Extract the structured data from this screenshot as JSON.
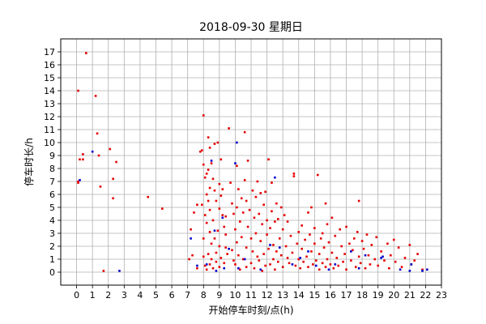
{
  "chart_data": {
    "type": "scatter",
    "title": "2018-09-30 星期日",
    "xlabel": "开始停车时刻/点(h)",
    "ylabel": "停车时长/h",
    "xlim": [
      -1,
      23
    ],
    "ylim": [
      -1,
      18
    ],
    "xticks": [
      0,
      1,
      2,
      3,
      4,
      5,
      6,
      7,
      8,
      9,
      10,
      11,
      12,
      13,
      14,
      15,
      16,
      17,
      18,
      19,
      20,
      21,
      22,
      23
    ],
    "yticks": [
      0,
      1,
      2,
      3,
      4,
      5,
      6,
      7,
      8,
      9,
      10,
      11,
      12,
      13,
      14,
      15,
      16,
      17
    ],
    "grid": true,
    "legend": "none",
    "colors": {
      "red": "#e60000",
      "blue": "#0000cc",
      "grid": "#b0b0b0"
    },
    "series": [
      {
        "color": "#e60000",
        "points": [
          [
            0.1,
            14.0
          ],
          [
            0.1,
            7.0
          ],
          [
            0.1,
            6.9
          ],
          [
            0.2,
            8.7
          ],
          [
            0.4,
            8.7
          ],
          [
            0.4,
            9.1
          ],
          [
            0.6,
            16.9
          ],
          [
            1.2,
            13.6
          ],
          [
            1.3,
            10.7
          ],
          [
            1.4,
            9.0
          ],
          [
            1.5,
            6.6
          ],
          [
            1.7,
            0.1
          ],
          [
            2.1,
            9.5
          ],
          [
            2.3,
            7.2
          ],
          [
            2.3,
            5.7
          ],
          [
            2.5,
            8.5
          ],
          [
            4.5,
            5.8
          ],
          [
            5.4,
            4.9
          ],
          [
            7.1,
            1.0
          ],
          [
            7.2,
            3.3
          ],
          [
            7.3,
            1.3
          ],
          [
            7.4,
            4.6
          ],
          [
            7.6,
            5.2
          ],
          [
            7.6,
            0.3
          ],
          [
            7.8,
            9.3
          ],
          [
            7.9,
            9.4
          ],
          [
            7.9,
            5.2
          ],
          [
            8.0,
            12.1
          ],
          [
            8.0,
            8.3
          ],
          [
            8.0,
            2.6
          ],
          [
            8.0,
            1.2
          ],
          [
            8.1,
            7.3
          ],
          [
            8.1,
            4.4
          ],
          [
            8.1,
            0.5
          ],
          [
            8.2,
            7.6
          ],
          [
            8.2,
            6.0
          ],
          [
            8.2,
            3.8
          ],
          [
            8.2,
            0.2
          ],
          [
            8.3,
            10.4
          ],
          [
            8.3,
            7.9
          ],
          [
            8.3,
            5.5
          ],
          [
            8.3,
            1.4
          ],
          [
            8.4,
            9.6
          ],
          [
            8.4,
            6.5
          ],
          [
            8.4,
            4.8
          ],
          [
            8.4,
            3.1
          ],
          [
            8.4,
            0.6
          ],
          [
            8.5,
            8.4
          ],
          [
            8.5,
            2.2
          ],
          [
            8.5,
            1.0
          ],
          [
            8.6,
            7.2
          ],
          [
            8.6,
            4.0
          ],
          [
            8.6,
            0.3
          ],
          [
            8.7,
            9.9
          ],
          [
            8.7,
            6.3
          ],
          [
            8.7,
            2.6
          ],
          [
            8.8,
            5.5
          ],
          [
            8.8,
            1.5
          ],
          [
            8.8,
            0.8
          ],
          [
            8.9,
            10.0
          ],
          [
            8.9,
            3.2
          ],
          [
            9.0,
            6.8
          ],
          [
            9.0,
            4.9
          ],
          [
            9.0,
            2.0
          ],
          [
            9.0,
            0.4
          ],
          [
            9.1,
            8.7
          ],
          [
            9.1,
            5.9
          ],
          [
            9.1,
            1.1
          ],
          [
            9.2,
            6.4
          ],
          [
            9.2,
            4.4
          ],
          [
            9.3,
            3.5
          ],
          [
            9.3,
            0.7
          ],
          [
            9.4,
            4.3
          ],
          [
            9.4,
            2.9
          ],
          [
            9.4,
            1.9
          ],
          [
            9.5,
            1.4
          ],
          [
            9.6,
            11.1
          ],
          [
            9.7,
            6.9
          ],
          [
            9.8,
            5.3
          ],
          [
            9.8,
            1.7
          ],
          [
            9.9,
            4.5
          ],
          [
            9.9,
            0.9
          ],
          [
            10.0,
            3.3
          ],
          [
            10.0,
            0.6
          ],
          [
            10.1,
            8.2
          ],
          [
            10.1,
            5.0
          ],
          [
            10.1,
            2.3
          ],
          [
            10.2,
            6.4
          ],
          [
            10.2,
            1.3
          ],
          [
            10.3,
            3.9
          ],
          [
            10.3,
            0.2
          ],
          [
            10.4,
            5.7
          ],
          [
            10.4,
            2.7
          ],
          [
            10.5,
            4.6
          ],
          [
            10.5,
            1.0
          ],
          [
            10.6,
            10.8
          ],
          [
            10.6,
            7.1
          ],
          [
            10.7,
            5.5
          ],
          [
            10.7,
            1.9
          ],
          [
            10.7,
            0.4
          ],
          [
            10.8,
            8.6
          ],
          [
            10.8,
            3.5
          ],
          [
            10.9,
            4.8
          ],
          [
            11.0,
            2.6
          ],
          [
            11.0,
            0.7
          ],
          [
            11.1,
            6.3
          ],
          [
            11.1,
            1.6
          ],
          [
            11.2,
            4.2
          ],
          [
            11.2,
            0.3
          ],
          [
            11.3,
            5.8
          ],
          [
            11.3,
            3.0
          ],
          [
            11.4,
            7.0
          ],
          [
            11.4,
            1.2
          ],
          [
            11.5,
            4.5
          ],
          [
            11.5,
            0.9
          ],
          [
            11.6,
            6.1
          ],
          [
            11.6,
            2.4
          ],
          [
            11.7,
            3.7
          ],
          [
            11.7,
            0.1
          ],
          [
            11.8,
            5.2
          ],
          [
            11.8,
            1.4
          ],
          [
            11.9,
            6.2
          ],
          [
            11.9,
            0.5
          ],
          [
            12.0,
            4.0
          ],
          [
            12.0,
            2.9
          ],
          [
            12.1,
            8.7
          ],
          [
            12.1,
            1.8
          ],
          [
            12.2,
            3.4
          ],
          [
            12.2,
            0.6
          ],
          [
            12.3,
            6.9
          ],
          [
            12.3,
            4.7
          ],
          [
            12.4,
            2.1
          ],
          [
            12.4,
            1.0
          ],
          [
            12.5,
            3.9
          ],
          [
            12.5,
            0.2
          ],
          [
            12.6,
            5.3
          ],
          [
            12.6,
            1.6
          ],
          [
            12.7,
            4.1
          ],
          [
            12.7,
            0.8
          ],
          [
            12.8,
            2.6
          ],
          [
            12.9,
            5.0
          ],
          [
            12.9,
            1.3
          ],
          [
            13.0,
            3.3
          ],
          [
            13.0,
            0.4
          ],
          [
            13.1,
            4.4
          ],
          [
            13.2,
            2.0
          ],
          [
            13.3,
            1.1
          ],
          [
            13.3,
            3.9
          ],
          [
            13.4,
            0.7
          ],
          [
            13.5,
            2.8
          ],
          [
            13.6,
            1.5
          ],
          [
            13.7,
            7.6
          ],
          [
            13.7,
            7.4
          ],
          [
            13.8,
            0.5
          ],
          [
            13.9,
            2.2
          ],
          [
            14.0,
            1.0
          ],
          [
            14.0,
            3.1
          ],
          [
            14.1,
            0.3
          ],
          [
            14.2,
            3.6
          ],
          [
            14.2,
            1.8
          ],
          [
            14.3,
            0.8
          ],
          [
            14.4,
            2.5
          ],
          [
            14.5,
            1.2
          ],
          [
            14.6,
            4.6
          ],
          [
            14.6,
            0.4
          ],
          [
            14.7,
            2.9
          ],
          [
            14.8,
            5.0
          ],
          [
            14.8,
            1.6
          ],
          [
            14.9,
            0.6
          ],
          [
            15.0,
            3.4
          ],
          [
            15.0,
            2.2
          ],
          [
            15.1,
            0.9
          ],
          [
            15.2,
            7.5
          ],
          [
            15.3,
            1.4
          ],
          [
            15.3,
            0.2
          ],
          [
            15.4,
            2.6
          ],
          [
            15.5,
            3.0
          ],
          [
            15.5,
            0.7
          ],
          [
            15.6,
            1.9
          ],
          [
            15.7,
            5.3
          ],
          [
            15.7,
            0.4
          ],
          [
            15.8,
            3.7
          ],
          [
            15.8,
            1.0
          ],
          [
            15.9,
            2.3
          ],
          [
            16.0,
            0.6
          ],
          [
            16.1,
            4.2
          ],
          [
            16.1,
            1.5
          ],
          [
            16.2,
            0.3
          ],
          [
            16.3,
            2.8
          ],
          [
            16.4,
            1.1
          ],
          [
            16.5,
            0.5
          ],
          [
            16.6,
            3.3
          ],
          [
            16.7,
            2.0
          ],
          [
            16.8,
            0.8
          ],
          [
            16.9,
            1.4
          ],
          [
            17.0,
            3.5
          ],
          [
            17.0,
            0.2
          ],
          [
            17.2,
            2.2
          ],
          [
            17.3,
            0.9
          ],
          [
            17.4,
            1.7
          ],
          [
            17.5,
            2.6
          ],
          [
            17.6,
            0.4
          ],
          [
            17.7,
            3.1
          ],
          [
            17.8,
            5.5
          ],
          [
            17.8,
            1.2
          ],
          [
            17.9,
            0.7
          ],
          [
            18.0,
            2.4
          ],
          [
            18.1,
            1.8
          ],
          [
            18.2,
            0.3
          ],
          [
            18.3,
            2.9
          ],
          [
            18.4,
            1.3
          ],
          [
            18.5,
            0.6
          ],
          [
            18.6,
            2.1
          ],
          [
            18.8,
            1.0
          ],
          [
            18.9,
            2.7
          ],
          [
            19.0,
            0.5
          ],
          [
            19.2,
            1.6
          ],
          [
            19.4,
            0.9
          ],
          [
            19.6,
            2.2
          ],
          [
            19.7,
            0.3
          ],
          [
            19.8,
            1.3
          ],
          [
            20.0,
            2.5
          ],
          [
            20.1,
            0.8
          ],
          [
            20.3,
            1.9
          ],
          [
            20.5,
            0.4
          ],
          [
            20.7,
            1.1
          ],
          [
            21.0,
            2.1
          ],
          [
            21.1,
            0.6
          ],
          [
            21.3,
            0.9
          ],
          [
            21.5,
            1.4
          ],
          [
            21.8,
            0.2
          ]
        ]
      },
      {
        "color": "#0000cc",
        "points": [
          [
            0.2,
            7.1
          ],
          [
            1.0,
            9.3
          ],
          [
            2.7,
            0.1
          ],
          [
            7.2,
            2.6
          ],
          [
            7.6,
            0.5
          ],
          [
            8.2,
            0.6
          ],
          [
            8.5,
            8.6
          ],
          [
            8.7,
            3.2
          ],
          [
            8.8,
            0.1
          ],
          [
            9.2,
            4.2
          ],
          [
            9.3,
            0.3
          ],
          [
            9.6,
            1.8
          ],
          [
            10.0,
            8.4
          ],
          [
            10.1,
            10.0
          ],
          [
            10.2,
            0.3
          ],
          [
            10.6,
            1.0
          ],
          [
            11.6,
            0.2
          ],
          [
            12.2,
            2.1
          ],
          [
            12.5,
            7.3
          ],
          [
            12.8,
            1.9
          ],
          [
            13.6,
            0.6
          ],
          [
            14.1,
            1.1
          ],
          [
            14.6,
            1.6
          ],
          [
            15.1,
            0.5
          ],
          [
            15.9,
            0.2
          ],
          [
            16.3,
            0.6
          ],
          [
            17.3,
            1.6
          ],
          [
            17.8,
            0.3
          ],
          [
            18.2,
            1.3
          ],
          [
            19.2,
            1.1
          ],
          [
            19.3,
            1.2
          ],
          [
            20.4,
            0.2
          ],
          [
            21.0,
            0.1
          ],
          [
            21.1,
            0.6
          ],
          [
            21.8,
            0.1
          ],
          [
            22.1,
            0.2
          ]
        ]
      }
    ]
  }
}
